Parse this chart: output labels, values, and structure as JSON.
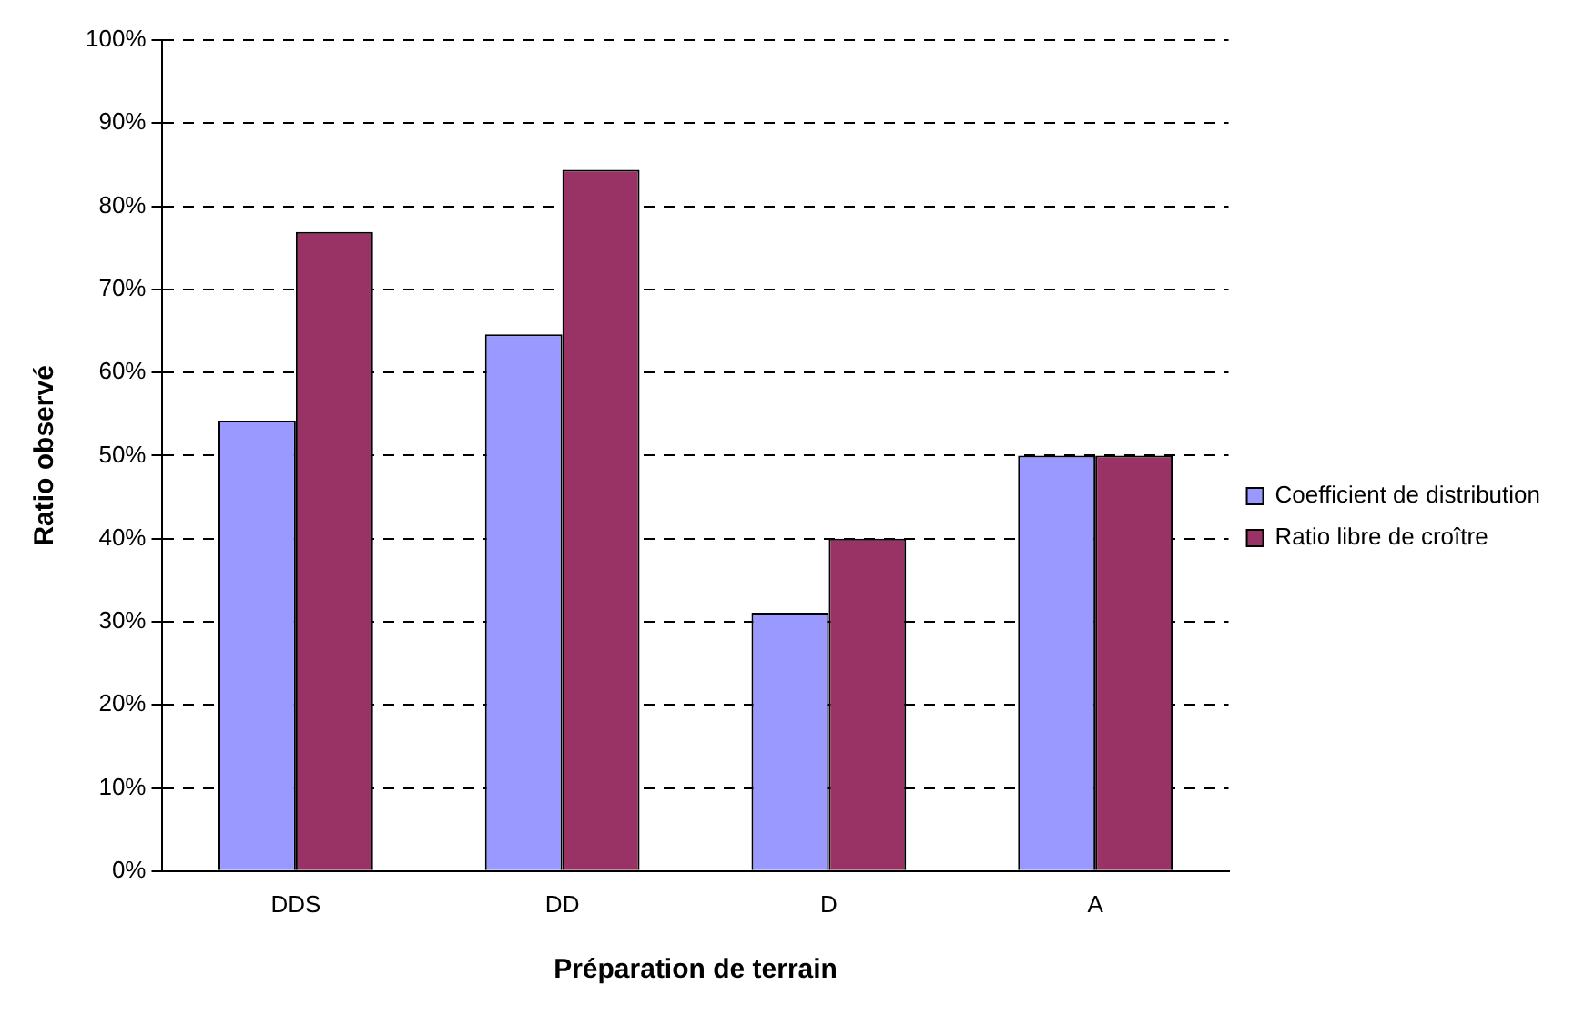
{
  "chart_data": {
    "type": "bar",
    "xlabel": "Préparation de terrain",
    "ylabel": "Ratio observé",
    "categories": [
      "DDS",
      "DD",
      "D",
      "A"
    ],
    "series": [
      {
        "name": "Coefficient de distribution",
        "color": "#9999ff",
        "values": [
          54.2,
          64.6,
          31.1,
          50
        ]
      },
      {
        "name": "Ratio libre de croître",
        "color": "#993366",
        "values": [
          76.9,
          84.4,
          40,
          50
        ]
      }
    ],
    "ylim": [
      0,
      100
    ],
    "yticks": [
      {
        "value": 0,
        "label": "0%"
      },
      {
        "value": 10,
        "label": "10%"
      },
      {
        "value": 20,
        "label": "20%"
      },
      {
        "value": 30,
        "label": "30%"
      },
      {
        "value": 40,
        "label": "40%"
      },
      {
        "value": 50,
        "label": "50%"
      },
      {
        "value": 60,
        "label": "60%"
      },
      {
        "value": 70,
        "label": "70%"
      },
      {
        "value": 80,
        "label": "80%"
      },
      {
        "value": 90,
        "label": "90%"
      },
      {
        "value": 100,
        "label": "100%"
      }
    ],
    "grid": "y",
    "legend": "right"
  }
}
